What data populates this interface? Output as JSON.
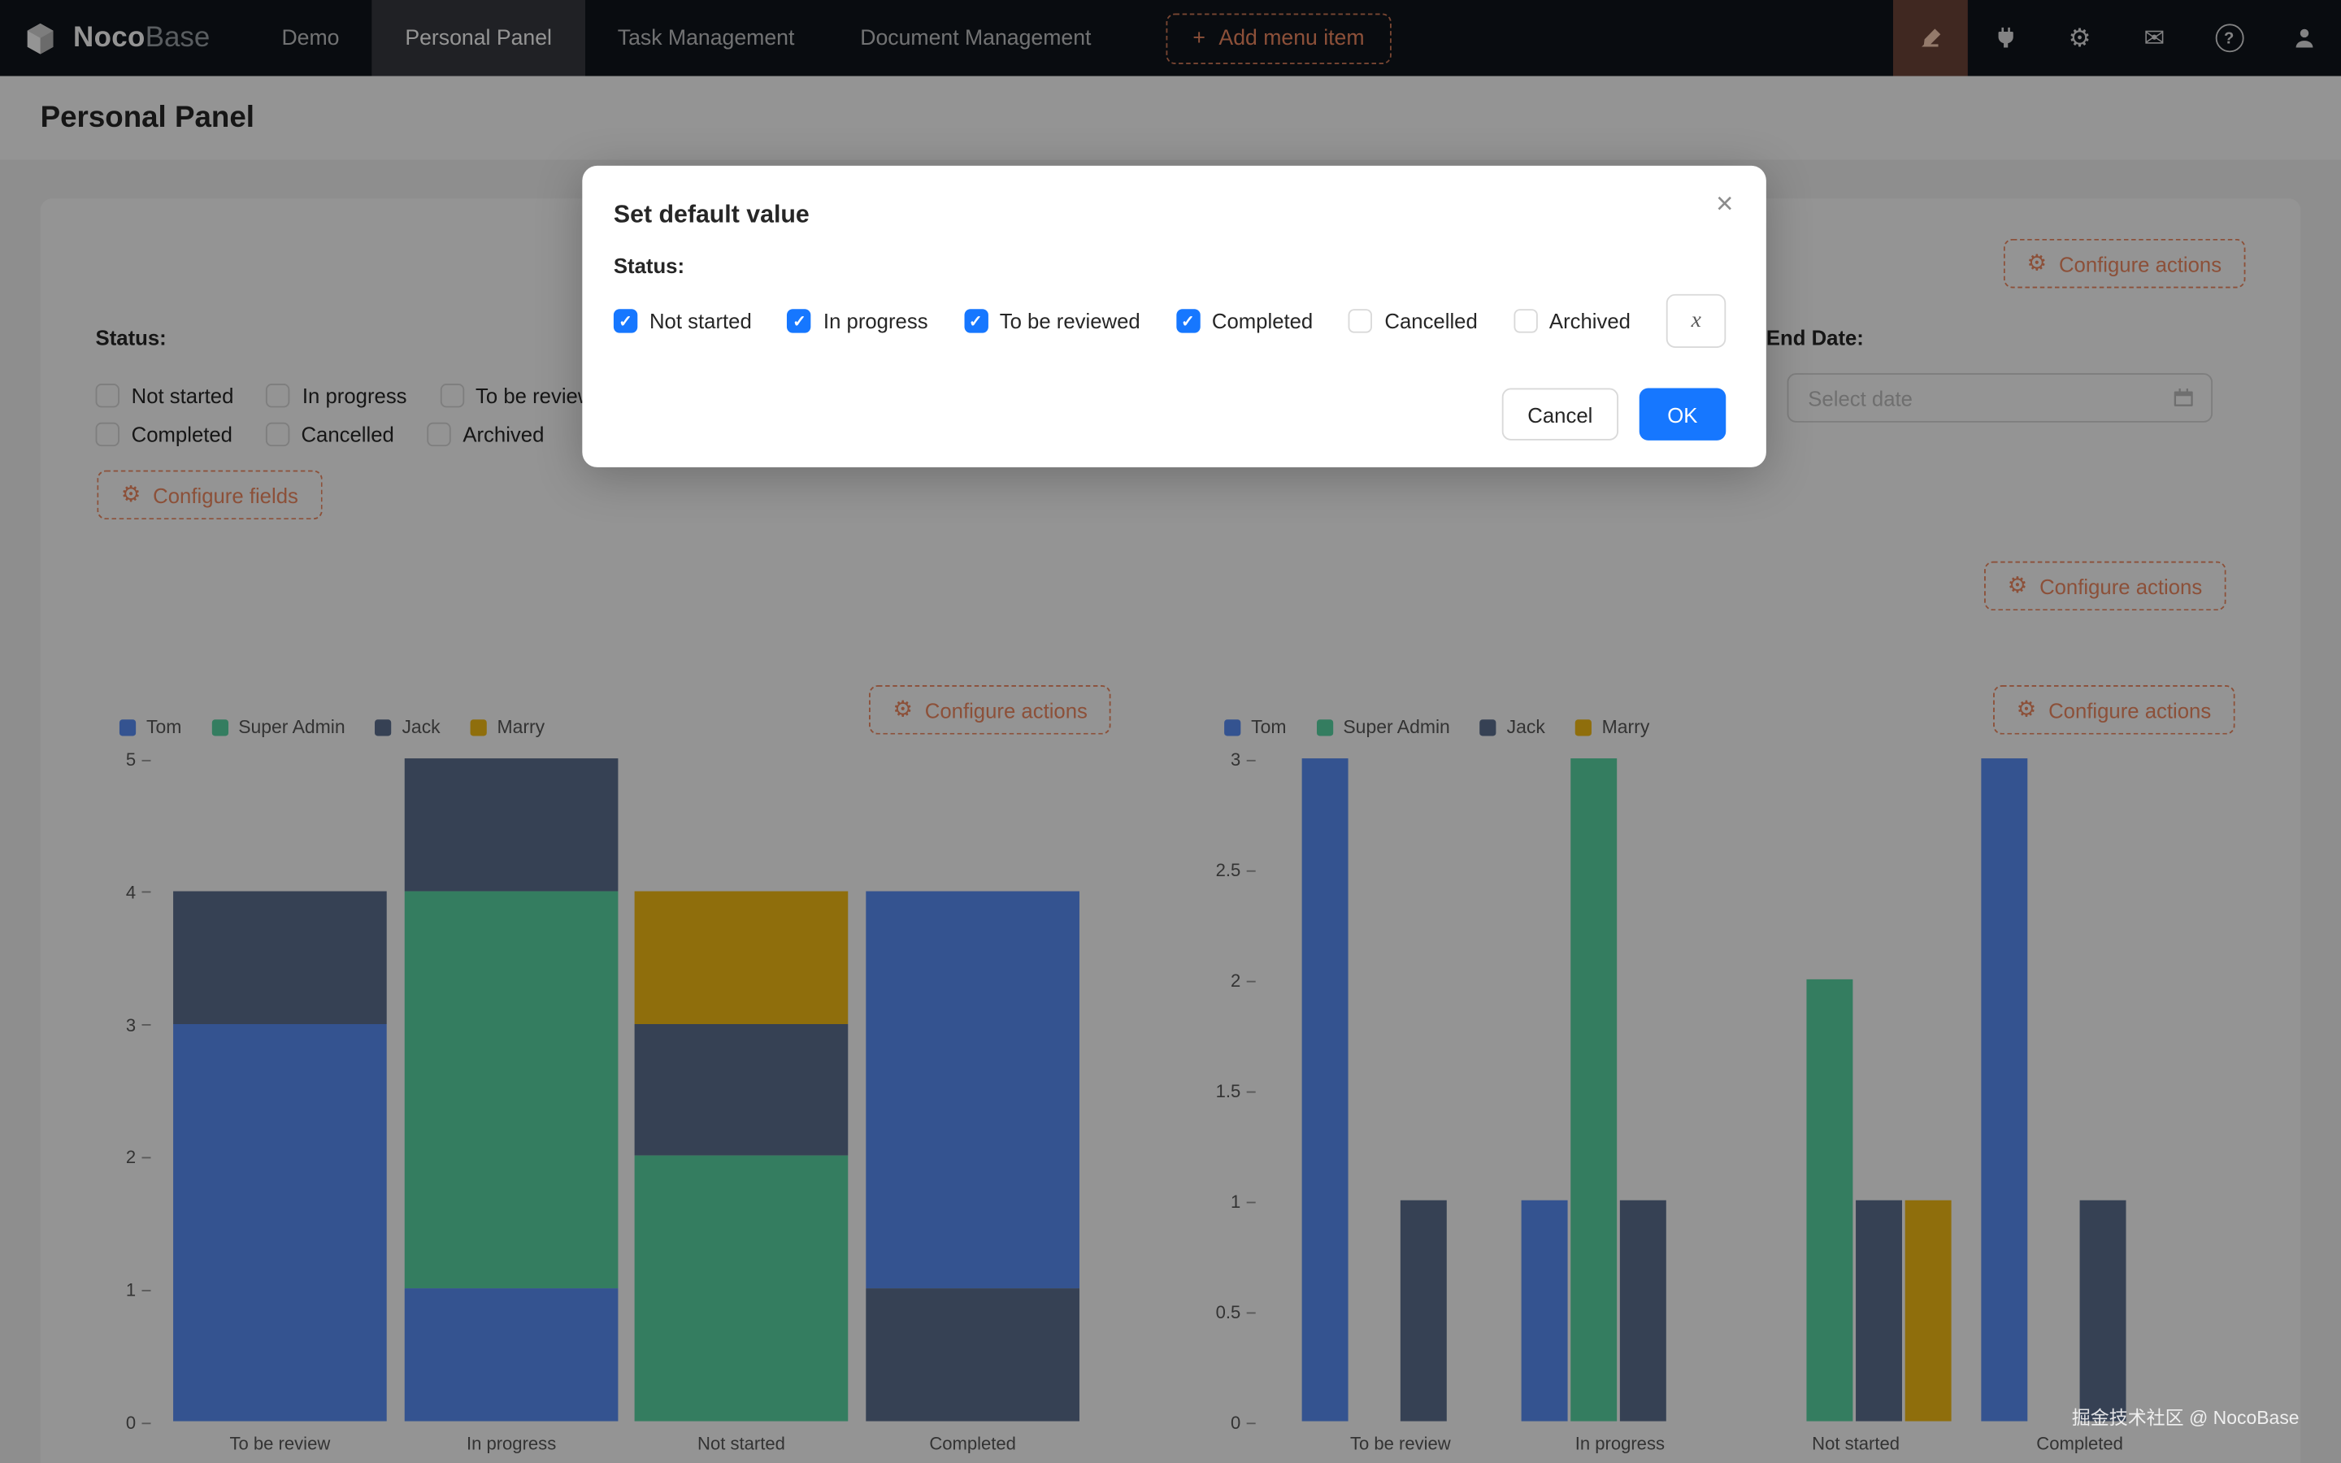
{
  "navbar": {
    "logo_noco": "Noco",
    "logo_base": "Base",
    "items": [
      {
        "label": "Demo",
        "active": false
      },
      {
        "label": "Personal Panel",
        "active": true
      },
      {
        "label": "Task Management",
        "active": false
      },
      {
        "label": "Document Management",
        "active": false
      }
    ],
    "add_menu_item": "Add menu item"
  },
  "page": {
    "title": "Personal Panel"
  },
  "filter": {
    "status_label": "Status:",
    "checkboxes_row1": [
      "Not started",
      "In progress",
      "To be reviewed"
    ],
    "checkboxes_row2": [
      "Completed",
      "Cancelled",
      "Archived"
    ],
    "end_date_label": "End Date:",
    "date_placeholder": "Select date"
  },
  "actions": {
    "configure_actions": "Configure actions",
    "configure_fields": "Configure fields"
  },
  "modal": {
    "title": "Set default value",
    "status_label": "Status:",
    "options": [
      {
        "label": "Not started",
        "checked": true
      },
      {
        "label": "In progress",
        "checked": true
      },
      {
        "label": "To be reviewed",
        "checked": true
      },
      {
        "label": "Completed",
        "checked": true
      },
      {
        "label": "Cancelled",
        "checked": false
      },
      {
        "label": "Archived",
        "checked": false
      }
    ],
    "variable_button": "x",
    "cancel": "Cancel",
    "ok": "OK"
  },
  "watermark": "掘金技术社区 @ NocoBase",
  "colors": {
    "primary": "#1677ff",
    "designer": "#F18B62"
  },
  "chart_series": [
    {
      "name": "Tom",
      "color": "#5B8FF9"
    },
    {
      "name": "Super Admin",
      "color": "#5AD8A6"
    },
    {
      "name": "Jack",
      "color": "#5D7092"
    },
    {
      "name": "Marry",
      "color": "#F6BD16"
    }
  ],
  "chart_data": [
    {
      "type": "bar",
      "variant": "stacked",
      "title": "",
      "categories": [
        "To be review",
        "In progress",
        "Not started",
        "Completed"
      ],
      "legend": [
        "Tom",
        "Super Admin",
        "Jack",
        "Marry"
      ],
      "legend_position": "top",
      "grid": false,
      "ymax": 5,
      "yticks": [
        0,
        1,
        2,
        3,
        4,
        5
      ],
      "bars": [
        [
          {
            "series": "Tom",
            "value": 3
          },
          {
            "series": "Jack",
            "value": 1
          }
        ],
        [
          {
            "series": "Tom",
            "value": 1
          },
          {
            "series": "Super Admin",
            "value": 3
          },
          {
            "series": "Jack",
            "value": 1
          }
        ],
        [
          {
            "series": "Super Admin",
            "value": 2
          },
          {
            "series": "Jack",
            "value": 1
          },
          {
            "series": "Marry",
            "value": 1
          }
        ],
        [
          {
            "series": "Jack",
            "value": 1
          },
          {
            "series": "Tom",
            "value": 3
          }
        ]
      ]
    },
    {
      "type": "bar",
      "variant": "grouped",
      "title": "",
      "categories": [
        "To be review",
        "In progress",
        "Not started",
        "Completed"
      ],
      "legend": [
        "Tom",
        "Super Admin",
        "Jack",
        "Marry"
      ],
      "legend_position": "top",
      "grid": false,
      "ymax": 3,
      "yticks": [
        0,
        0.5,
        1,
        1.5,
        2,
        2.5,
        3
      ],
      "series": [
        {
          "name": "Tom",
          "values": [
            3,
            1,
            0,
            3
          ]
        },
        {
          "name": "Super Admin",
          "values": [
            0,
            3,
            2,
            0
          ]
        },
        {
          "name": "Jack",
          "values": [
            1,
            1,
            1,
            1
          ]
        },
        {
          "name": "Marry",
          "values": [
            0,
            0,
            1,
            0
          ]
        }
      ]
    }
  ]
}
